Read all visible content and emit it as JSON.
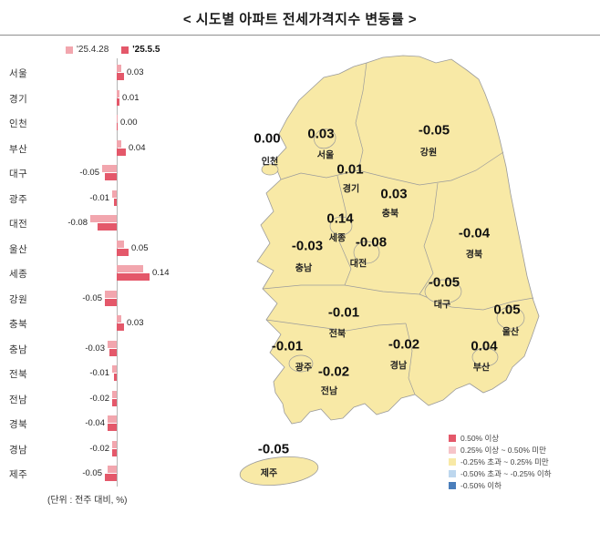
{
  "title": "< 시도별 아파트 전세가격지수 변동률 >",
  "chart_data": [
    {
      "type": "bar",
      "orientation": "horizontal",
      "unit_note": "(단위 : 전주 대비, %)",
      "categories": [
        "서울",
        "경기",
        "인천",
        "부산",
        "대구",
        "광주",
        "대전",
        "울산",
        "세종",
        "강원",
        "충북",
        "충남",
        "전북",
        "전남",
        "경북",
        "경남",
        "제주"
      ],
      "series": [
        {
          "name": "'25.4.28",
          "color": "#F2A6AE",
          "values": [
            0.02,
            0.01,
            0.0,
            0.02,
            -0.06,
            -0.02,
            -0.11,
            0.03,
            0.11,
            -0.05,
            0.02,
            -0.04,
            -0.02,
            -0.02,
            -0.04,
            -0.02,
            -0.04
          ]
        },
        {
          "name": "'25.5.5",
          "color": "#E4586A",
          "values": [
            0.03,
            0.01,
            0.0,
            0.04,
            -0.05,
            -0.01,
            -0.08,
            0.05,
            0.14,
            -0.05,
            0.03,
            -0.03,
            -0.01,
            -0.02,
            -0.04,
            -0.02,
            -0.05
          ]
        }
      ],
      "value_labels": [
        "0.03",
        "0.01",
        "0.00",
        "0.04",
        "-0.05",
        "-0.01",
        "-0.08",
        "0.05",
        "0.14",
        "-0.05",
        "0.03",
        "-0.03",
        "-0.01",
        "-0.02",
        "-0.04",
        "-0.02",
        "-0.05"
      ],
      "xlim": [
        -0.15,
        0.2
      ]
    },
    {
      "type": "map",
      "map_fill": "#F8E9A6",
      "map_stroke": "#9B9B9B",
      "regions": [
        {
          "name": "인천",
          "value": "0.00"
        },
        {
          "name": "서울",
          "value": "0.03"
        },
        {
          "name": "강원",
          "value": "-0.05"
        },
        {
          "name": "경기",
          "value": "0.01"
        },
        {
          "name": "충북",
          "value": "0.03"
        },
        {
          "name": "세종",
          "value": "0.14"
        },
        {
          "name": "대전",
          "value": "-0.08"
        },
        {
          "name": "경북",
          "value": "-0.04"
        },
        {
          "name": "충남",
          "value": "-0.03"
        },
        {
          "name": "대구",
          "value": "-0.05"
        },
        {
          "name": "전북",
          "value": "-0.01"
        },
        {
          "name": "울산",
          "value": "0.05"
        },
        {
          "name": "광주",
          "value": "-0.01"
        },
        {
          "name": "경남",
          "value": "-0.02"
        },
        {
          "name": "부산",
          "value": "0.04"
        },
        {
          "name": "전남",
          "value": "-0.02"
        },
        {
          "name": "제주",
          "value": "-0.05"
        }
      ],
      "legend": [
        {
          "label": "0.50% 이상",
          "color": "#E4586A"
        },
        {
          "label": "0.25% 이상 ~ 0.50% 미만",
          "color": "#F6C4C9"
        },
        {
          "label": "-0.25% 초과 ~ 0.25% 미만",
          "color": "#F8E9A6"
        },
        {
          "label": "-0.50% 초과 ~ -0.25% 이하",
          "color": "#BDD7EE"
        },
        {
          "label": "-0.50% 이하",
          "color": "#4A7EBB"
        }
      ]
    }
  ]
}
